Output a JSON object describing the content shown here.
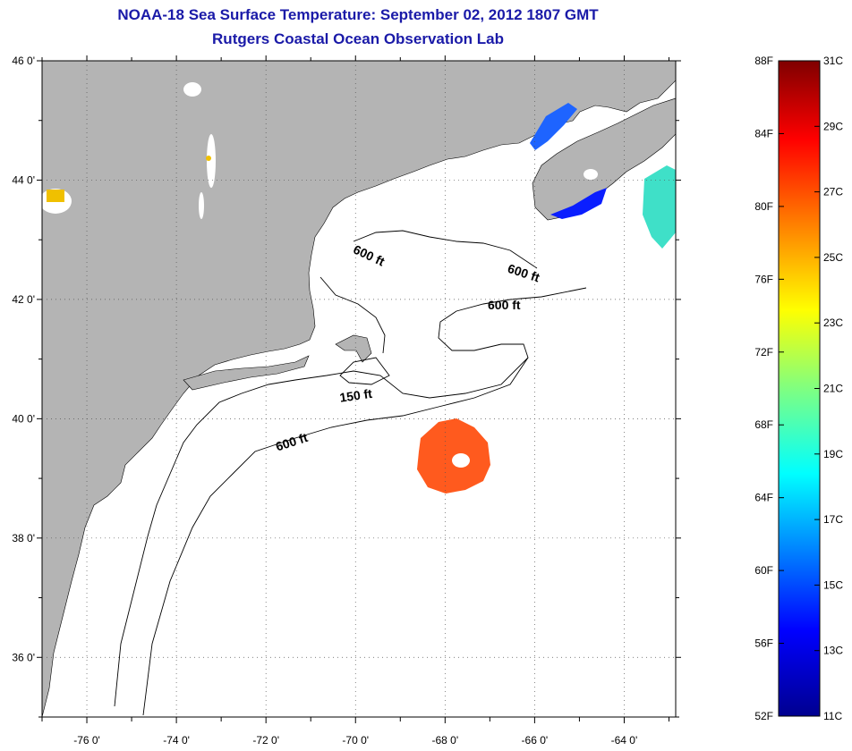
{
  "header": {
    "title": "NOAA-18 Sea Surface Temperature:  September 02, 2012 1807 GMT",
    "subtitle": "Rutgers Coastal Ocean Observation Lab"
  },
  "map": {
    "lat_labels": [
      "46 0'",
      "44 0'",
      "42 0'",
      "40 0'",
      "38 0'",
      "36 0'"
    ],
    "lon_labels": [
      "-76 0'",
      "-74 0'",
      "-72 0'",
      "-70 0'",
      "-68 0'",
      "-66 0'",
      "-64 0'"
    ],
    "contour_labels": [
      "600 ft",
      "600 ft",
      "600 ft",
      "150 ft",
      "600 ft"
    ],
    "land_color": "#b4b4b4",
    "sea_color": "#ffffff",
    "features": [
      "land-mass",
      "bathymetry-contours",
      "sst-patches",
      "clouds"
    ]
  },
  "colorbar": {
    "fahrenheit": [
      "88F",
      "84F",
      "80F",
      "76F",
      "72F",
      "68F",
      "64F",
      "60F",
      "56F",
      "52F"
    ],
    "celsius": [
      "31C",
      "29C",
      "27C",
      "25C",
      "23C",
      "21C",
      "19C",
      "17C",
      "15C",
      "13C",
      "11C"
    ],
    "colors": [
      "#7f0000",
      "#ff0000",
      "#ff8000",
      "#ffff00",
      "#80ff80",
      "#00ffff",
      "#0080ff",
      "#0000ff",
      "#00008f"
    ]
  }
}
